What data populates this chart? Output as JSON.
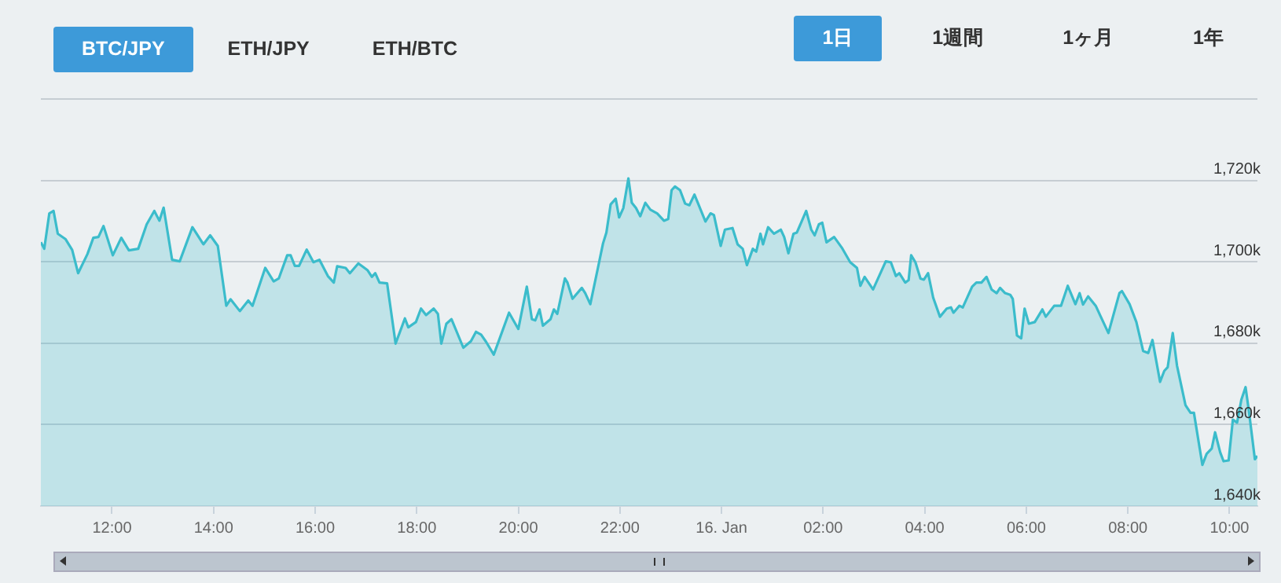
{
  "chart_data": {
    "type": "area",
    "annotations": [
      "BTC/JPY",
      "ETH/JPY",
      "ETH/BTC",
      "1日",
      "1週間",
      "1ヶ月",
      "1年"
    ],
    "x": [
      "--01-15T10:36",
      "--01-15T10:40",
      "--01-15T10:46",
      "--01-15T10:51",
      "--01-15T10:56",
      "--01-15T11:05",
      "--01-15T11:13",
      "--01-15T11:20",
      "--01-15T11:31",
      "--01-15T11:38",
      "--01-15T11:44",
      "--01-15T11:50",
      "--01-15T12:01",
      "--01-15T12:11",
      "--01-15T12:20",
      "--01-15T12:31",
      "--01-15T12:41",
      "--01-15T12:50",
      "--01-15T12:56",
      "--01-15T13:01",
      "--01-15T13:11",
      "--01-15T13:20",
      "--01-15T13:35",
      "--01-15T13:48",
      "--01-15T13:56",
      "--01-15T14:05",
      "--01-15T14:15",
      "--01-15T14:20",
      "--01-15T14:31",
      "--01-15T14:41",
      "--01-15T14:46",
      "--01-15T15:01",
      "--01-15T15:11",
      "--01-15T15:17",
      "--01-15T15:27",
      "--01-15T15:31",
      "--01-15T15:36",
      "--01-15T15:41",
      "--01-15T15:50",
      "--01-15T15:58",
      "--01-15T16:05",
      "--01-15T16:15",
      "--01-15T16:22",
      "--01-15T16:26",
      "--01-15T16:36",
      "--01-15T16:41",
      "--01-15T16:51",
      "--01-15T17:02",
      "--01-15T17:07",
      "--01-15T17:11",
      "--01-15T17:16",
      "--01-15T17:25",
      "--01-15T17:35",
      "--01-15T17:46",
      "--01-15T17:50",
      "--01-15T17:59",
      "--01-15T18:05",
      "--01-15T18:11",
      "--01-15T18:20",
      "--01-15T18:25",
      "--01-15T18:29",
      "--01-15T18:35",
      "--01-15T18:41",
      "--01-15T18:55",
      "--01-15T19:04",
      "--01-15T19:10",
      "--01-15T19:16",
      "--01-15T19:22",
      "--01-15T19:31",
      "--01-15T19:38",
      "--01-15T19:49",
      "--01-15T20:00",
      "--01-15T20:10",
      "--01-15T20:16",
      "--01-15T20:20",
      "--01-15T20:25",
      "--01-15T20:29",
      "--01-15T20:38",
      "--01-15T20:42",
      "--01-15T20:46",
      "--01-15T20:55",
      "--01-15T20:58",
      "--01-15T21:04",
      "--01-15T21:15",
      "--01-15T21:19",
      "--01-15T21:25",
      "--01-15T21:34",
      "--01-15T21:40",
      "--01-15T21:44",
      "--01-15T21:49",
      "--01-15T21:55",
      "--01-15T21:59",
      "--01-15T22:04",
      "--01-15T22:10",
      "--01-15T22:14",
      "--01-15T22:19",
      "--01-15T22:24",
      "--01-15T22:30",
      "--01-15T22:36",
      "--01-15T22:44",
      "--01-15T22:52",
      "--01-15T22:57",
      "--01-15T23:01",
      "--01-15T23:05",
      "--01-15T23:11",
      "--01-15T23:17",
      "--01-15T23:22",
      "--01-15T23:28",
      "--01-15T23:32",
      "--01-15T23:41",
      "--01-15T23:47",
      "--01-15T23:51",
      "--01-15T23:59",
      "--01-16T00:04",
      "--01-16T00:13",
      "--01-16T00:19",
      "--01-16T00:25",
      "--01-16T00:30",
      "--01-16T00:37",
      "--01-16T00:41",
      "--01-16T00:46",
      "--01-16T00:49",
      "--01-16T00:55",
      "--01-16T01:02",
      "--01-16T01:10",
      "--01-16T01:14",
      "--01-16T01:19",
      "--01-16T01:25",
      "--01-16T01:29",
      "--01-16T01:40",
      "--01-16T01:46",
      "--01-16T01:50",
      "--01-16T01:55",
      "--01-16T01:59",
      "--01-16T02:04",
      "--01-16T02:13",
      "--01-16T02:22",
      "--01-16T02:32",
      "--01-16T02:40",
      "--01-16T02:44",
      "--01-16T02:49",
      "--01-16T02:59",
      "--01-16T03:14",
      "--01-16T03:20",
      "--01-16T03:26",
      "--01-16T03:30",
      "--01-16T03:37",
      "--01-16T03:41",
      "--01-16T03:44",
      "--01-16T03:49",
      "--01-16T03:55",
      "--01-16T03:59",
      "--01-16T04:04",
      "--01-16T04:10",
      "--01-16T04:18",
      "--01-16T04:26",
      "--01-16T04:31",
      "--01-16T04:34",
      "--01-16T04:41",
      "--01-16T04:45",
      "--01-16T04:56",
      "--01-16T05:01",
      "--01-16T05:07",
      "--01-16T05:13",
      "--01-16T05:19",
      "--01-16T05:25",
      "--01-16T05:29",
      "--01-16T05:35",
      "--01-16T05:41",
      "--01-16T05:44",
      "--01-16T05:49",
      "--01-16T05:54",
      "--01-16T05:58",
      "--01-16T06:03",
      "--01-16T06:10",
      "--01-16T06:19",
      "--01-16T06:23",
      "--01-16T06:33",
      "--01-16T06:41",
      "--01-16T06:49",
      "--01-16T06:58",
      "--01-16T07:03",
      "--01-16T07:07",
      "--01-16T07:13",
      "--01-16T07:22",
      "--01-16T07:28",
      "--01-16T07:37",
      "--01-16T07:50",
      "--01-16T07:53",
      "--01-16T08:02",
      "--01-16T08:10",
      "--01-16T08:18",
      "--01-16T08:24",
      "--01-16T08:29",
      "--01-16T08:38",
      "--01-16T08:43",
      "--01-16T08:47",
      "--01-16T08:53",
      "--01-16T08:58",
      "--01-16T09:08",
      "--01-16T09:14",
      "--01-16T09:18",
      "--01-16T09:28",
      "--01-16T09:33",
      "--01-16T09:39",
      "--01-16T09:43",
      "--01-16T09:49",
      "--01-16T09:53",
      "--01-16T09:59",
      "--01-16T10:04",
      "--01-16T10:09",
      "--01-16T10:14",
      "--01-16T10:19",
      "--01-16T10:23",
      "--01-16T10:30",
      "--01-16T10:33"
    ],
    "series": [
      {
        "color": "#3bbccb",
        "values": [
          1704.8,
          1703.2,
          1711.9,
          1712.5,
          1706.9,
          1705.6,
          1702.9,
          1697.2,
          1701.9,
          1705.9,
          1706.1,
          1708.8,
          1701.6,
          1705.9,
          1702.8,
          1703.2,
          1709.2,
          1712.5,
          1710.1,
          1713.3,
          1700.5,
          1700.1,
          1708.5,
          1704.3,
          1706.5,
          1703.9,
          1689.2,
          1690.8,
          1687.9,
          1690.5,
          1689.2,
          1698.5,
          1695.2,
          1695.9,
          1701.6,
          1701.6,
          1699,
          1699,
          1703,
          1699.9,
          1700.5,
          1696.5,
          1694.9,
          1698.9,
          1698.5,
          1697.2,
          1699.6,
          1697.9,
          1696.3,
          1697.2,
          1694.9,
          1694.7,
          1679.9,
          1686.1,
          1683.9,
          1685.2,
          1688.5,
          1686.9,
          1688.5,
          1687.2,
          1679.9,
          1684.8,
          1685.9,
          1678.9,
          1680.5,
          1682.8,
          1682.1,
          1680.3,
          1677.2,
          1681.2,
          1687.5,
          1683.5,
          1693.9,
          1685.9,
          1685.6,
          1688.3,
          1684.3,
          1685.9,
          1688.3,
          1687.2,
          1695.9,
          1694.9,
          1690.9,
          1693.6,
          1692.3,
          1689.6,
          1698.5,
          1704.5,
          1707.2,
          1714.1,
          1715.5,
          1710.9,
          1713.2,
          1720.5,
          1714.5,
          1713.2,
          1711.2,
          1714.5,
          1712.8,
          1711.9,
          1710.1,
          1710.5,
          1717.6,
          1718.5,
          1717.6,
          1714.3,
          1713.9,
          1716.5,
          1714.5,
          1709.9,
          1711.9,
          1711.5,
          1703.9,
          1707.9,
          1708.3,
          1704.3,
          1703.2,
          1699.2,
          1703.2,
          1702.5,
          1706.9,
          1704.3,
          1708.5,
          1706.9,
          1707.9,
          1706.1,
          1702.1,
          1706.9,
          1707.2,
          1712.5,
          1707.9,
          1706.5,
          1709.2,
          1709.6,
          1704.8,
          1706.1,
          1703.5,
          1699.9,
          1698.5,
          1694.1,
          1696.3,
          1693.2,
          1700.1,
          1699.9,
          1696.5,
          1697.2,
          1694.9,
          1695.5,
          1701.6,
          1699.9,
          1695.9,
          1695.6,
          1697.2,
          1691.2,
          1686.5,
          1688.5,
          1688.8,
          1687.5,
          1689.2,
          1688.8,
          1693.9,
          1694.9,
          1694.9,
          1696.3,
          1693.2,
          1692.3,
          1693.6,
          1692.3,
          1691.9,
          1690.9,
          1681.9,
          1681.2,
          1688.5,
          1684.8,
          1685.2,
          1688.3,
          1686.5,
          1689.2,
          1689.2,
          1694.1,
          1689.6,
          1692.3,
          1689.5,
          1691.5,
          1689.2,
          1686.5,
          1682.5,
          1692.3,
          1692.8,
          1689.6,
          1685.2,
          1678.1,
          1677.6,
          1680.8,
          1670.5,
          1673.2,
          1674.1,
          1682.5,
          1674.5,
          1664.8,
          1662.9,
          1662.9,
          1650.1,
          1652.8,
          1654.1,
          1658.1,
          1653.2,
          1651,
          1651.2,
          1661.2,
          1660.5,
          1666.1,
          1669.2,
          1663.2,
          1651.5,
          1652.3
        ]
      }
    ],
    "xlim": [
      "--01-15T10:36",
      "--01-16T10:33"
    ],
    "xticks": [
      {
        "value": "--01-15T12:00",
        "label": "12:00"
      },
      {
        "value": "--01-15T14:00",
        "label": "14:00"
      },
      {
        "value": "--01-15T16:00",
        "label": "16:00"
      },
      {
        "value": "--01-15T18:00",
        "label": "18:00"
      },
      {
        "value": "--01-15T20:00",
        "label": "20:00"
      },
      {
        "value": "--01-15T22:00",
        "label": "22:00"
      },
      {
        "value": "--01-16T00:00",
        "label": "16. Jan"
      },
      {
        "value": "--01-16T02:00",
        "label": "02:00"
      },
      {
        "value": "--01-16T04:00",
        "label": "04:00"
      },
      {
        "value": "--01-16T06:00",
        "label": "06:00"
      },
      {
        "value": "--01-16T08:00",
        "label": "08:00"
      },
      {
        "value": "--01-16T10:00",
        "label": "10:00"
      }
    ],
    "ylim": [
      1640,
      1740
    ],
    "yticks": [
      {
        "value": 1640,
        "label": "1,640k"
      },
      {
        "value": 1660,
        "label": "1,660k"
      },
      {
        "value": 1680,
        "label": "1,680k"
      },
      {
        "value": 1700,
        "label": "1,700k"
      },
      {
        "value": 1720,
        "label": "1,720k"
      },
      {
        "value": 1740,
        "label": null
      }
    ],
    "grid": "y",
    "legend": false,
    "marker": "none",
    "line_style": "solid"
  }
}
